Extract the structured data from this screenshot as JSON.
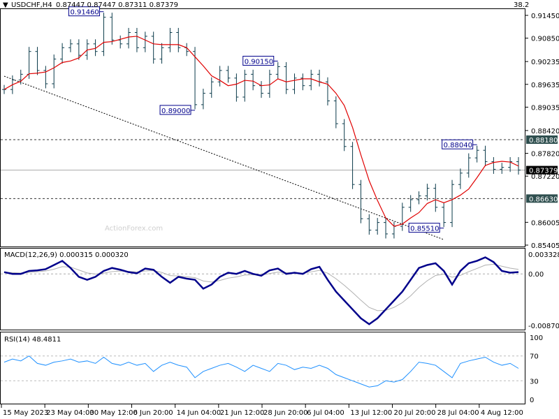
{
  "header": {
    "symbol": "USDCHF,H4",
    "ohlc": "0.87447 0.87447 0.87311 0.87379",
    "fib_label": "38.2"
  },
  "watermark": "ActionForex.com",
  "colors": {
    "bars": "#0a3a4a",
    "ma": "#e00000",
    "macd": "#00008b",
    "signal": "#b0b0b0",
    "rsi": "#1e90ff",
    "axis_box": "#2f4f4f"
  },
  "chart_data": [
    {
      "type": "ohlc",
      "title": "USDCHF,H4",
      "yticks": [
        "0.91450",
        "0.90850",
        "0.90235",
        "0.89635",
        "0.89035",
        "0.88420",
        "0.87820",
        "0.87220",
        "0.86005",
        "0.85405"
      ],
      "ylim": [
        0.85405,
        0.9145
      ],
      "xticks": [
        "15 May 2023",
        "23 May 04:00",
        "30 May 12:00",
        "6 Jun 20:00",
        "14 Jun 04:00",
        "21 Jun 12:00",
        "28 Jun 20:00",
        "6 Jul 04:00",
        "13 Jul 12:00",
        "20 Jul 20:00",
        "28 Jul 04:00",
        "4 Aug 12:00"
      ],
      "closes": [
        0.895,
        0.8975,
        0.899,
        0.905,
        0.9,
        0.8965,
        0.903,
        0.906,
        0.907,
        0.904,
        0.907,
        0.905,
        0.914,
        0.908,
        0.907,
        0.91,
        0.906,
        0.909,
        0.903,
        0.906,
        0.91,
        0.906,
        0.905,
        0.891,
        0.894,
        0.897,
        0.9,
        0.898,
        0.893,
        0.899,
        0.896,
        0.894,
        0.899,
        0.901,
        0.895,
        0.898,
        0.896,
        0.899,
        0.897,
        0.892,
        0.886,
        0.88,
        0.87,
        0.861,
        0.858,
        0.86,
        0.857,
        0.859,
        0.864,
        0.866,
        0.867,
        0.869,
        0.864,
        0.86,
        0.87,
        0.873,
        0.877,
        0.879,
        0.876,
        0.874,
        0.8745,
        0.876,
        0.8738
      ],
      "moving_average": "red",
      "annotations": [
        {
          "label": "0.91460",
          "index": 12
        },
        {
          "label": "0.89000",
          "index": 23
        },
        {
          "label": "0.90150",
          "index": 33
        },
        {
          "label": "0.88040",
          "index": 57
        },
        {
          "label": "0.85510",
          "index": 53
        }
      ],
      "levels": [
        {
          "label": "0.88180",
          "value": 0.8818,
          "style": "dashed"
        },
        {
          "label": "0.86630",
          "value": 0.8663,
          "style": "dashed"
        },
        {
          "label": "0.87379",
          "value": 0.87379,
          "style": "current"
        }
      ],
      "trendline": {
        "from": [
          0,
          0.8985
        ],
        "to": [
          53,
          0.8555
        ]
      }
    },
    {
      "type": "line",
      "title": "MACD(12,26,9) 0.000315 0.000320",
      "yticks": [
        "0.003328",
        "0.00",
        "-0.008707"
      ],
      "ylim": [
        -0.008707,
        0.003328
      ],
      "macd": [
        0.0003,
        0,
        0,
        0.0005,
        0.0006,
        0.0008,
        0.0015,
        0.0022,
        0.001,
        -0.0005,
        -0.001,
        -0.0005,
        0.0005,
        0.001,
        0.0007,
        0.0003,
        0.0001,
        0.0009,
        0.0007,
        -0.0005,
        -0.0015,
        -0.0005,
        -0.0008,
        -0.001,
        -0.0025,
        -0.0018,
        -0.0005,
        0.0002,
        0.0,
        0.0005,
        0.0,
        -0.0003,
        0.0006,
        0.0009,
        0.0,
        0.0002,
        0.0,
        0.0008,
        0.0012,
        -0.001,
        -0.003,
        -0.0045,
        -0.006,
        -0.0075,
        -0.0085,
        -0.0075,
        -0.006,
        -0.0045,
        -0.003,
        -0.001,
        0.001,
        0.0015,
        0.0018,
        0.0005,
        -0.0018,
        0.0005,
        0.0018,
        0.0022,
        0.0028,
        0.002,
        0.0005,
        0.0002,
        0.0003
      ]
    },
    {
      "type": "line",
      "title": "RSI(14) 48.4811",
      "yticks": [
        "100",
        "70",
        "30",
        "0"
      ],
      "ylim": [
        0,
        100
      ],
      "levels": [
        70,
        30
      ],
      "rsi": [
        60,
        65,
        62,
        70,
        58,
        55,
        60,
        62,
        65,
        60,
        62,
        58,
        68,
        58,
        55,
        60,
        55,
        58,
        45,
        55,
        60,
        55,
        52,
        35,
        45,
        50,
        55,
        58,
        52,
        45,
        55,
        50,
        45,
        58,
        55,
        48,
        52,
        50,
        55,
        50,
        40,
        35,
        30,
        25,
        20,
        22,
        30,
        28,
        32,
        45,
        60,
        58,
        55,
        45,
        35,
        58,
        62,
        65,
        68,
        60,
        55,
        58,
        50
      ]
    }
  ]
}
